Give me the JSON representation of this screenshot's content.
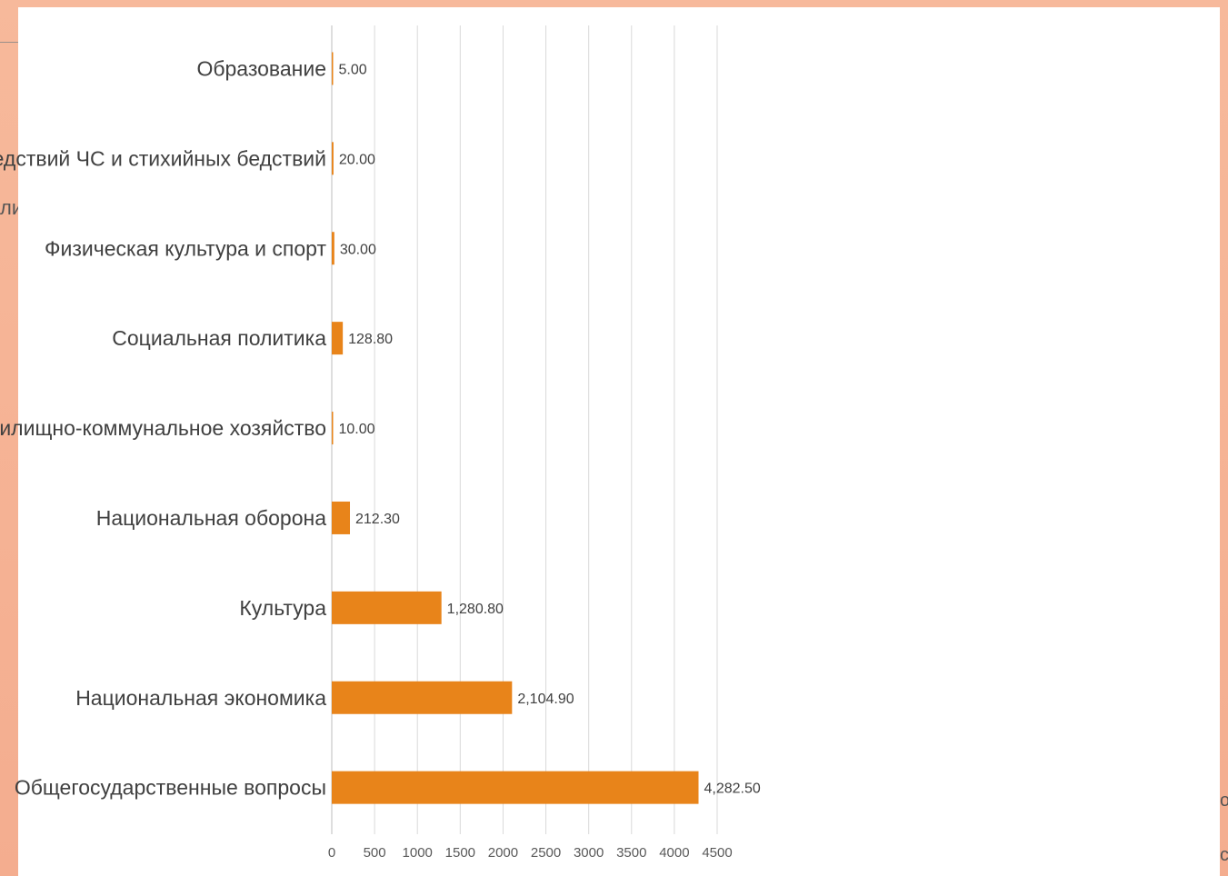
{
  "background": {
    "accent_color": "#f6b89a",
    "left_fragment": "ли",
    "right_fragment_1": "о",
    "right_fragment_2": "с"
  },
  "chart_data": {
    "type": "bar",
    "orientation": "horizontal",
    "title": "",
    "xlabel": "",
    "ylabel": "",
    "xlim": [
      0,
      4500
    ],
    "x_ticks": [
      0,
      500,
      1000,
      1500,
      2000,
      2500,
      3000,
      3500,
      4000,
      4500
    ],
    "grid": "vertical",
    "bar_color": "#e8841a",
    "categories": [
      "Образование",
      "Защита населения и территории от последствий ЧС и стихийных бедствий",
      "Физическая культура и спорт",
      "Социальная политика",
      "Жилищно-коммунальное хозяйство",
      "Национальная оборона",
      "Культура",
      "Национальная экономика",
      "Общегосударственные вопросы"
    ],
    "values": [
      5.0,
      20.0,
      30.0,
      128.8,
      10.0,
      212.3,
      1280.8,
      2104.9,
      4282.5
    ],
    "data_labels": [
      "5.00",
      "20.00",
      "30.00",
      "128.80",
      "10.00",
      "212.30",
      "1,280.80",
      "2,104.90",
      "4,282.50"
    ]
  }
}
